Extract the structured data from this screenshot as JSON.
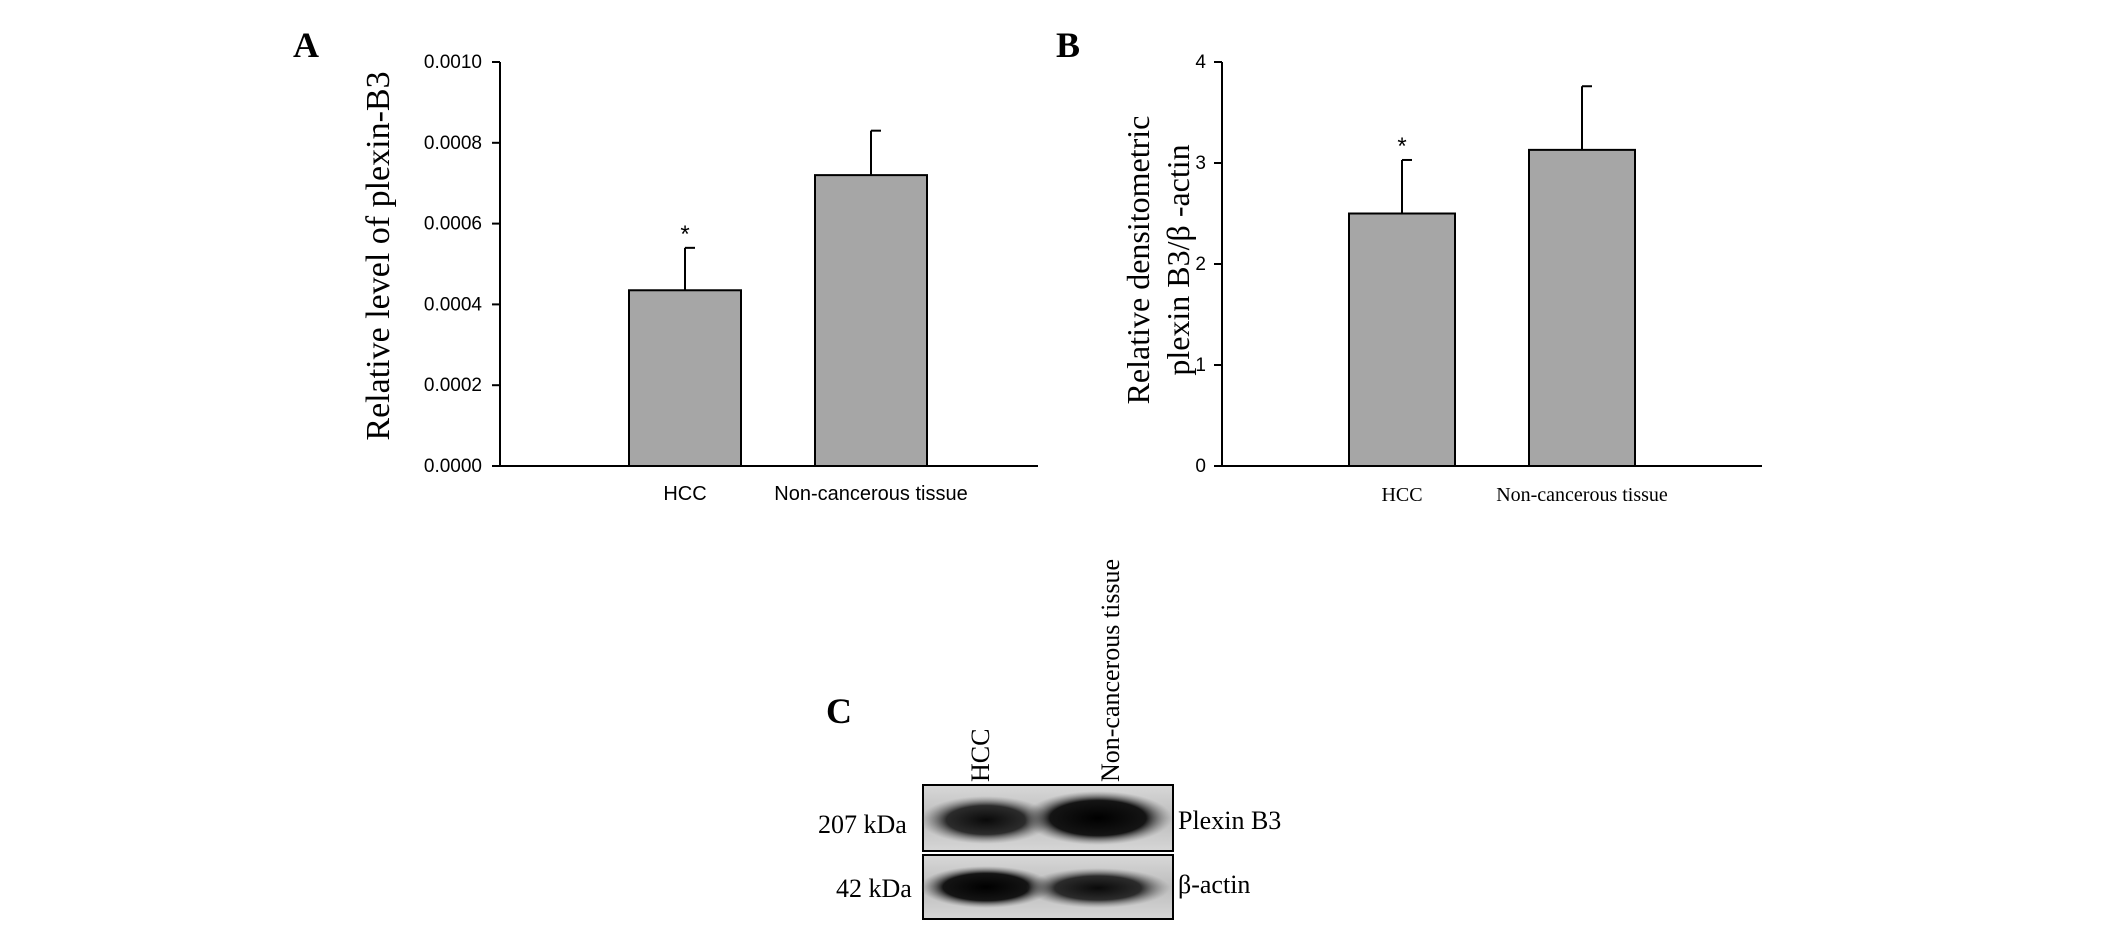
{
  "panels": {
    "a_letter": "A",
    "b_letter": "B",
    "c_letter": "C"
  },
  "chart_data": [
    {
      "type": "bar",
      "panel": "A",
      "ylabel": "Relative level of plexin-B3",
      "xlabel": "",
      "categories": [
        "HCC",
        "Non-cancerous tissue"
      ],
      "values": [
        0.000435,
        0.00072
      ],
      "errors": [
        0.000105,
        0.00011
      ],
      "significance": [
        "*",
        ""
      ],
      "ylim": [
        0,
        0.001
      ],
      "yticks": [
        0.0,
        0.0002,
        0.0004,
        0.0006,
        0.0008,
        0.001
      ],
      "ytick_labels": [
        "0.0000",
        "0.0002",
        "0.0004",
        "0.0006",
        "0.0008",
        "0.0010"
      ],
      "bar_color": "#a6a6a6",
      "grid": false
    },
    {
      "type": "bar",
      "panel": "B",
      "ylabel_line1": "Relative densitometric",
      "ylabel_line2": "plexin B3/β -actin",
      "xlabel": "",
      "categories": [
        "HCC",
        "Non-cancerous tissue"
      ],
      "values": [
        2.5,
        3.13
      ],
      "errors": [
        0.53,
        0.63
      ],
      "significance": [
        "*",
        ""
      ],
      "ylim": [
        0,
        4
      ],
      "yticks": [
        0,
        1,
        2,
        3,
        4
      ],
      "ytick_labels": [
        "0",
        "1",
        "2",
        "3",
        "4"
      ],
      "bar_color": "#a6a6a6",
      "grid": false
    }
  ],
  "blot": {
    "lanes": [
      "HCC",
      "Non-cancerous tissue"
    ],
    "rows": [
      {
        "size": "207 kDa",
        "protein": "Plexin B3"
      },
      {
        "size": "42 kDa",
        "protein": "β-actin"
      }
    ]
  }
}
